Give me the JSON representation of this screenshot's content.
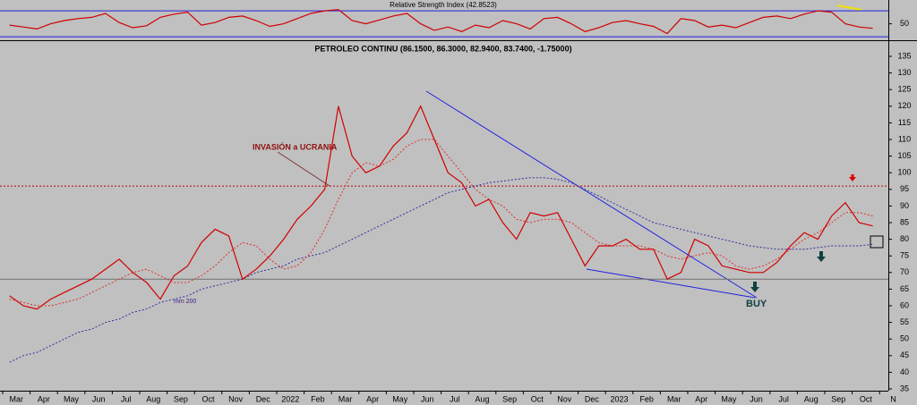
{
  "chart_data": [
    {
      "type": "line",
      "title": "Relative Strength Index (42.8523)",
      "ylim": [
        26,
        84
      ],
      "yticks": [
        50
      ],
      "levels": [
        30,
        70
      ],
      "series": [
        {
          "color": "#d00000",
          "values": [
            48,
            45,
            42,
            50,
            55,
            58,
            60,
            66,
            52,
            44,
            47,
            60,
            65,
            68,
            48,
            52,
            60,
            62,
            55,
            46,
            50,
            58,
            66,
            70,
            72,
            55,
            50,
            56,
            62,
            66,
            50,
            40,
            45,
            38,
            48,
            44,
            55,
            50,
            42,
            58,
            60,
            50,
            38,
            44,
            52,
            55,
            50,
            46,
            35,
            58,
            55,
            45,
            48,
            44,
            52,
            60,
            62,
            58,
            65,
            70,
            68,
            50,
            45,
            43
          ]
        }
      ]
    },
    {
      "type": "line",
      "title": "PETROLEO CONTINU (86.1500, 86.3000, 82.9400, 83.7400, -1.75000)",
      "categories": [
        "Mar",
        null,
        "Apr",
        null,
        "May",
        null,
        "Jun",
        null,
        "Jul",
        null,
        "Aug",
        null,
        "Sep",
        null,
        "Oct",
        null,
        "Nov",
        null,
        "Dec",
        null,
        "2022",
        null,
        "Feb",
        null,
        "Mar",
        null,
        "Apr",
        null,
        "May",
        null,
        "Jun",
        null,
        "Jul",
        null,
        "Aug",
        null,
        "Sep",
        null,
        "Oct",
        null,
        "Nov",
        null,
        "Dec",
        null,
        "2023",
        null,
        "Feb",
        null,
        "Mar",
        null,
        "Apr",
        null,
        "May",
        null,
        "Jun",
        null,
        "Jul",
        null,
        "Aug",
        null,
        "Sep",
        null,
        "Oct",
        null,
        "N"
      ],
      "ylim": [
        35,
        135
      ],
      "yticks": [
        35,
        40,
        45,
        50,
        55,
        60,
        65,
        70,
        75,
        80,
        85,
        90,
        95,
        100,
        105,
        110,
        115,
        120,
        125,
        130,
        135
      ],
      "levels": [
        {
          "value": 96,
          "color": "#c00000"
        },
        {
          "value": 68,
          "color": "#707070"
        }
      ],
      "series": [
        {
          "color": "#d00000",
          "style": "solid",
          "values": [
            63,
            60,
            59,
            62,
            64,
            66,
            68,
            71,
            74,
            70,
            67,
            62,
            69,
            72,
            79,
            83,
            81,
            68,
            71,
            75,
            80,
            86,
            90,
            95,
            120,
            105,
            100,
            102,
            108,
            112,
            120,
            110,
            100,
            97,
            90,
            92,
            85,
            80,
            88,
            87,
            88,
            80,
            72,
            78,
            78,
            80,
            77,
            77,
            68,
            70,
            80,
            78,
            72,
            71,
            70,
            70,
            73,
            78,
            82,
            80,
            87,
            91,
            85,
            84,
            null
          ]
        },
        {
          "color": "#e03030",
          "style": "dotted",
          "values": [
            62,
            61,
            60,
            60,
            61,
            62,
            64,
            66,
            68,
            70,
            71,
            69,
            67,
            67,
            69,
            72,
            76,
            79,
            78,
            74,
            71,
            72,
            76,
            83,
            92,
            100,
            103,
            102,
            104,
            108,
            110,
            110,
            105,
            100,
            95,
            92,
            90,
            86,
            85,
            86,
            86,
            85,
            82,
            79,
            78,
            78,
            78,
            77,
            75,
            74,
            75,
            76,
            75,
            72,
            71,
            72,
            74,
            77,
            80,
            82,
            85,
            88,
            88,
            87,
            null
          ]
        },
        {
          "color": "#3030a0",
          "style": "dotted",
          "values": [
            43,
            45,
            46,
            48,
            50,
            52,
            53,
            55,
            56,
            58,
            59,
            61,
            62,
            63,
            65,
            66,
            67,
            68,
            70,
            71,
            72,
            74,
            75,
            76,
            78,
            80,
            82,
            84,
            86,
            88,
            90,
            92,
            94,
            95,
            96,
            97,
            97.5,
            98,
            98.5,
            98.5,
            98,
            97,
            95,
            93,
            91,
            89,
            87,
            85,
            84,
            83,
            82,
            81,
            80,
            79,
            78,
            77.5,
            77,
            77,
            77,
            77.5,
            78,
            78,
            78,
            78.5,
            null
          ]
        }
      ],
      "annotations": [
        "INVASIÓN a UCRANIA",
        "mm 200",
        "BUY"
      ]
    }
  ]
}
